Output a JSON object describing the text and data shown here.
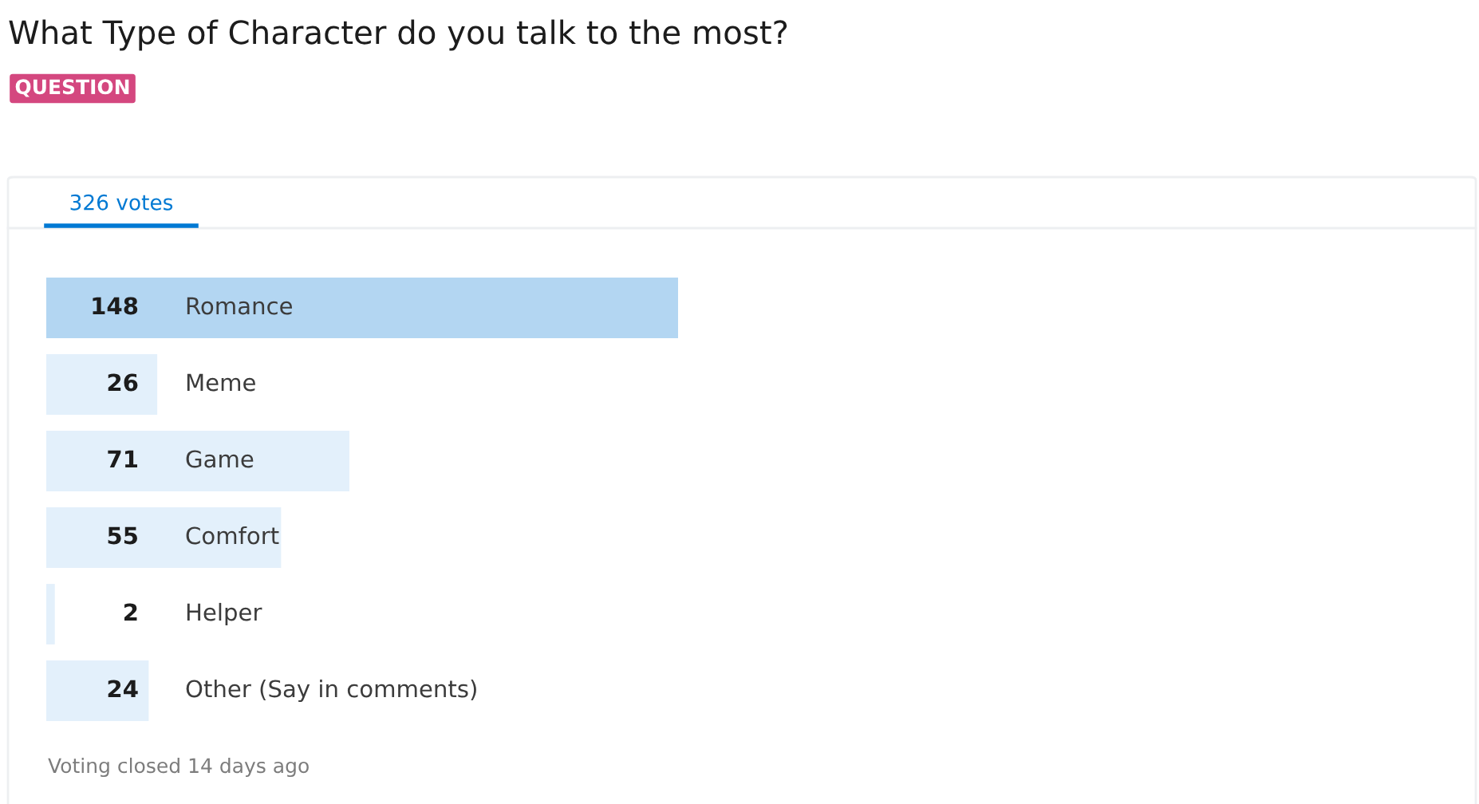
{
  "chart_data": {
    "type": "bar",
    "orientation": "horizontal",
    "title": "What Type of Character do you talk to the most?",
    "subtitle": "326 votes",
    "categories": [
      "Romance",
      "Meme",
      "Game",
      "Comfort",
      "Helper",
      "Other (Say in comments)"
    ],
    "values": [
      148,
      26,
      71,
      55,
      2,
      24
    ],
    "colors": [
      "#b3d6f2",
      "#e3f0fb",
      "#e3f0fb",
      "#e3f0fb",
      "#e3f0fb",
      "#e3f0fb"
    ],
    "data_labels": true,
    "annotations": [
      "QUESTION",
      "Voting closed 14 days ago"
    ]
  }
}
